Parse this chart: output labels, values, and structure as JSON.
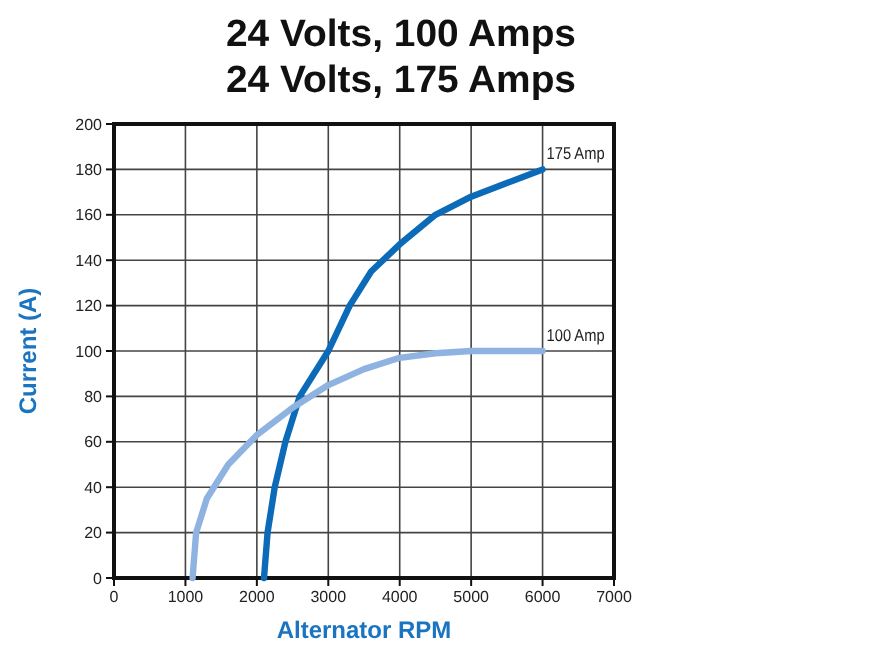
{
  "chart_data": {
    "type": "line",
    "title": "24 Volts, 100 Amps",
    "subtitle": "24 Volts, 175 Amps",
    "xlabel": "Alternator RPM",
    "ylabel": "Current (A)",
    "xlim": [
      0,
      7000
    ],
    "xticks": [
      0,
      1000,
      2000,
      3000,
      4000,
      5000,
      6000,
      7000
    ],
    "ylim": [
      0,
      200
    ],
    "yticks": [
      0,
      20,
      40,
      60,
      80,
      100,
      120,
      140,
      160,
      180,
      200
    ],
    "grid": true,
    "marker": "none",
    "line_style": "solid",
    "series": [
      {
        "name": "175 Amp",
        "color": "#0b6bb8",
        "x": [
          2100,
          2150,
          2250,
          2400,
          2600,
          3000,
          3300,
          3600,
          4000,
          4500,
          5000,
          5500,
          6000
        ],
        "values": [
          0,
          20,
          40,
          60,
          80,
          100,
          120,
          135,
          147,
          160,
          168,
          174,
          180
        ]
      },
      {
        "name": "100 Amp",
        "color": "#8fb3e0",
        "x": [
          1100,
          1150,
          1300,
          1600,
          2000,
          2500,
          3000,
          3500,
          4000,
          4500,
          5000,
          6000
        ],
        "values": [
          0,
          20,
          35,
          50,
          63,
          75,
          85,
          92,
          97,
          99,
          100,
          100
        ]
      }
    ]
  }
}
